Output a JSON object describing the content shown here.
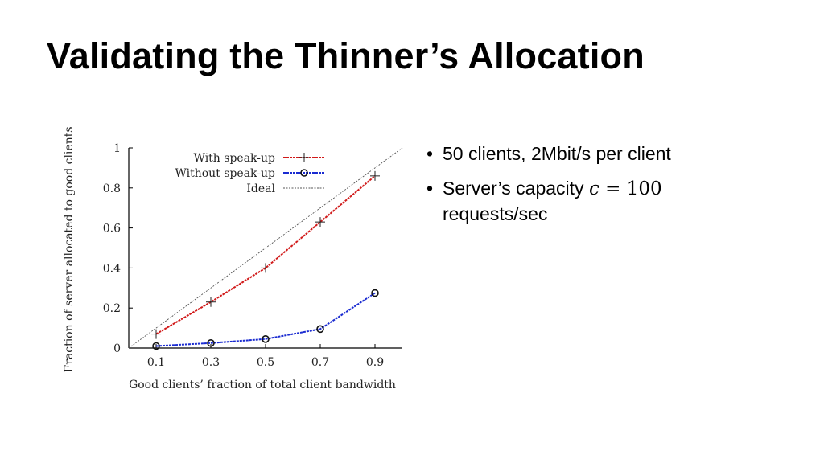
{
  "slide": {
    "title": "Validating the Thinner’s Allocation",
    "bullets": [
      {
        "text": "50 clients, 2Mbit/s per client"
      },
      {
        "text_before": "Server’s capacity ",
        "math_var": "c",
        "math_rest": " = 100",
        "text_after": "requests/sec"
      }
    ]
  },
  "chart_data": {
    "type": "line",
    "xlabel": "Good clients’ fraction of total client bandwidth",
    "ylabel": "Fraction of server allocated to good clients",
    "x": [
      0.1,
      0.3,
      0.5,
      0.7,
      0.9
    ],
    "xticks": [
      "0.1",
      "0.3",
      "0.5",
      "0.7",
      "0.9"
    ],
    "yticks": [
      "0",
      "0.2",
      "0.4",
      "0.6",
      "0.8",
      "1"
    ],
    "xlim": [
      0,
      1
    ],
    "ylim": [
      0,
      1
    ],
    "legend_position": "top-left",
    "grid": false,
    "series": [
      {
        "name": "With speak-up",
        "values": [
          0.07,
          0.23,
          0.4,
          0.63,
          0.86
        ],
        "color": "#d11a1a",
        "marker": "plus"
      },
      {
        "name": "Without speak-up",
        "values": [
          0.01,
          0.025,
          0.045,
          0.095,
          0.275
        ],
        "color": "#1a2bd1",
        "marker": "circle"
      }
    ],
    "reference_line": {
      "name": "Ideal",
      "from": [
        0,
        0
      ],
      "to": [
        1,
        1
      ],
      "color": "#555555"
    }
  }
}
